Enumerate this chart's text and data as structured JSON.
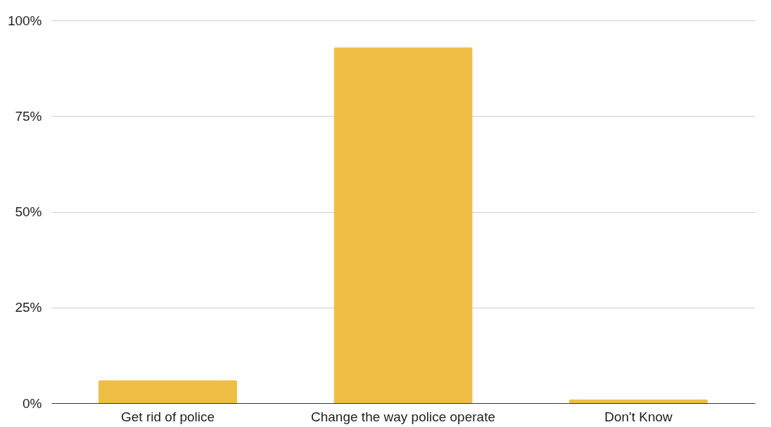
{
  "chart_data": {
    "type": "bar",
    "categories": [
      "Get rid of police",
      "Change the way police operate",
      "Don't Know"
    ],
    "values": [
      6,
      93,
      1
    ],
    "color": "#efbf45",
    "ylim": [
      0,
      100
    ],
    "yticks": [
      {
        "value": 0,
        "label": "0%"
      },
      {
        "value": 25,
        "label": "25%"
      },
      {
        "value": 50,
        "label": "50%"
      },
      {
        "value": 75,
        "label": "75%"
      },
      {
        "value": 100,
        "label": "100%"
      }
    ],
    "grid": "y"
  }
}
